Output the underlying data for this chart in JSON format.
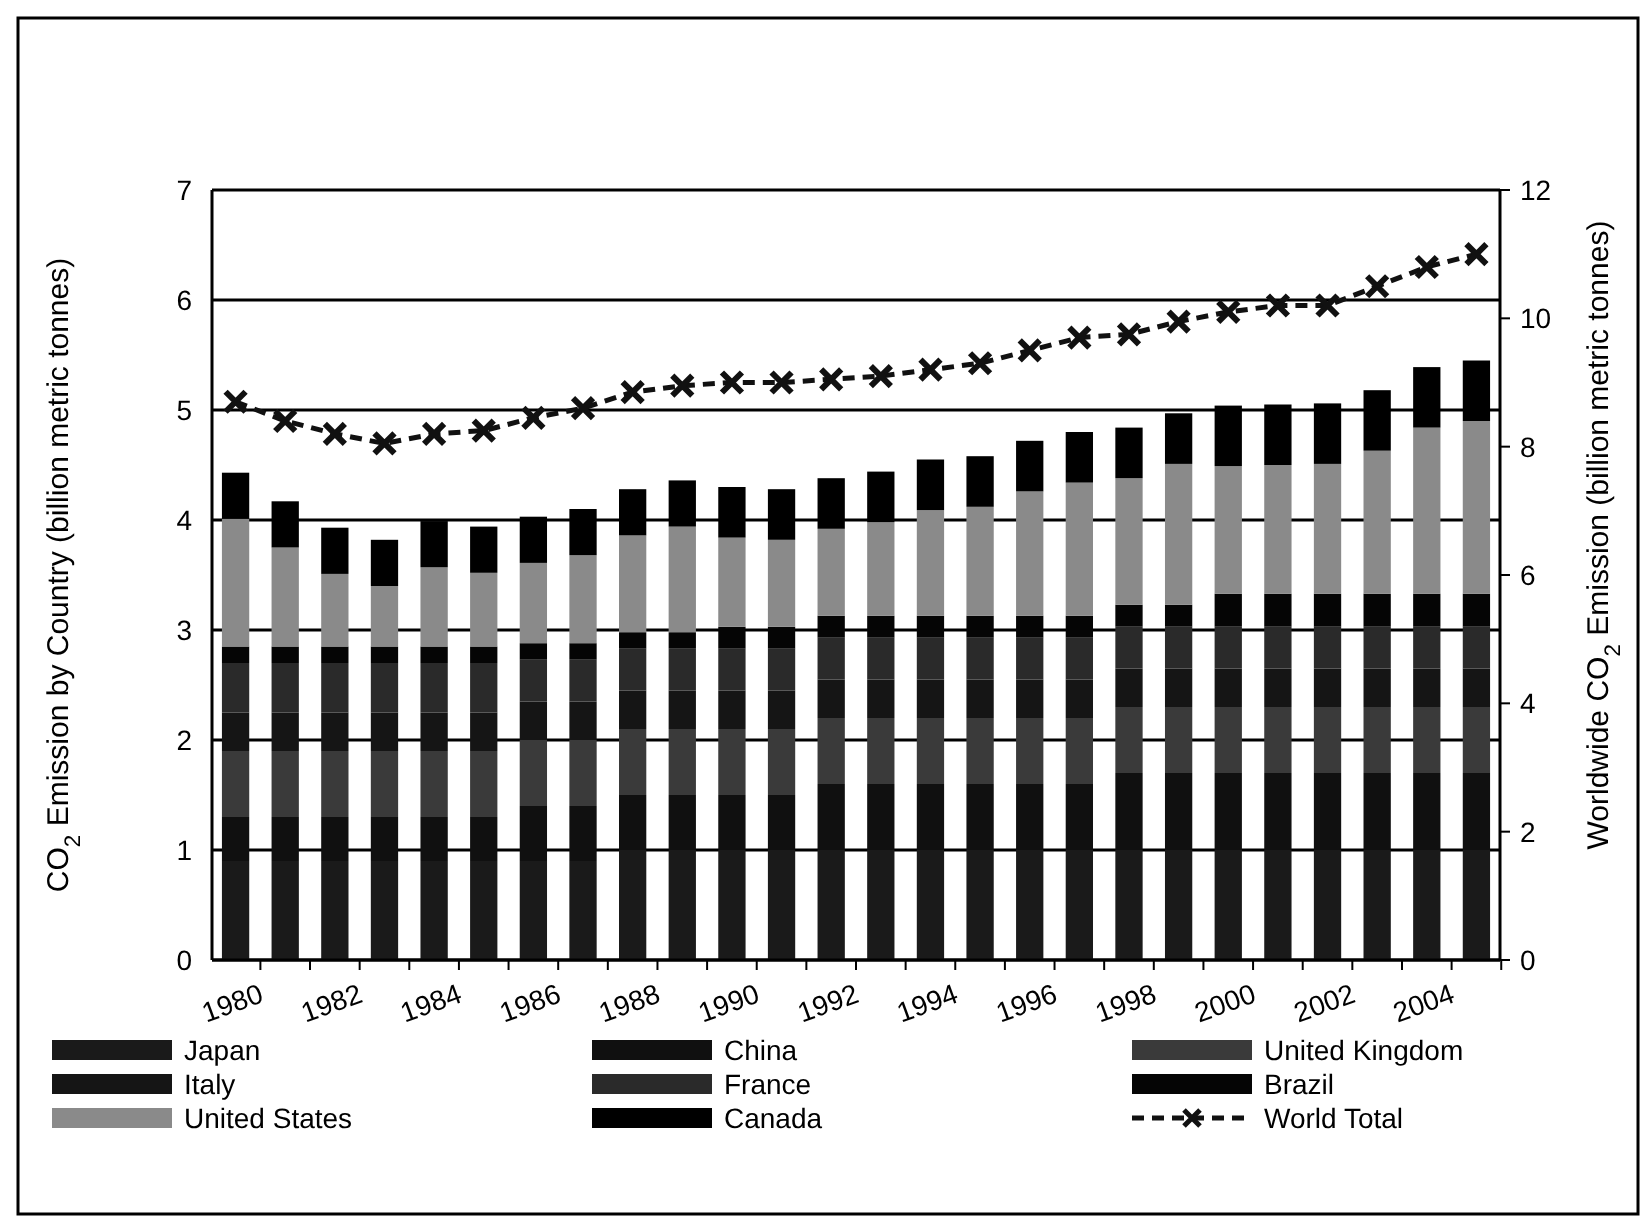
{
  "chart_data": {
    "type": "bar",
    "stacked": true,
    "categories": [
      "1980",
      null,
      "1982",
      null,
      "1984",
      null,
      "1986",
      null,
      "1988",
      null,
      "1990",
      null,
      "1992",
      null,
      "1994",
      null,
      "1996",
      null,
      "1998",
      null,
      "2000",
      null,
      "2002",
      null,
      "2004",
      null
    ],
    "ylabel": "CO$_{2}$ Emission by Country (billion metric tonnes)",
    "y2label": "Worldwide CO$_{2}$ Emission (billion metric tonnes)",
    "ylim": [
      0,
      7
    ],
    "yticks": [
      0,
      1,
      2,
      3,
      4,
      5,
      6,
      7
    ],
    "y2lim": [
      0,
      12
    ],
    "y2ticks": [
      0,
      2,
      4,
      6,
      8,
      10,
      12
    ],
    "grid": "y",
    "legend": "bottom",
    "series": [
      {
        "name": "Japan",
        "color": "#1a1a1a",
        "values": [
          0.9,
          0.9,
          0.9,
          0.9,
          0.9,
          0.9,
          0.9,
          0.9,
          1.0,
          1.0,
          1.0,
          1.0,
          1.0,
          1.0,
          1.0,
          1.0,
          1.0,
          1.0,
          1.0,
          1.0,
          1.0,
          1.0,
          1.0,
          1.0,
          1.0,
          1.0
        ]
      },
      {
        "name": "China",
        "color": "#101010",
        "values": [
          0.4,
          0.4,
          0.4,
          0.4,
          0.4,
          0.4,
          0.5,
          0.5,
          0.5,
          0.5,
          0.5,
          0.5,
          0.6,
          0.6,
          0.6,
          0.6,
          0.6,
          0.6,
          0.7,
          0.7,
          0.7,
          0.7,
          0.7,
          0.7,
          0.7,
          0.7
        ]
      },
      {
        "name": "United Kingdom",
        "color": "#3a3a3a",
        "values": [
          0.6,
          0.6,
          0.6,
          0.6,
          0.6,
          0.6,
          0.6,
          0.6,
          0.6,
          0.6,
          0.6,
          0.6,
          0.6,
          0.6,
          0.6,
          0.6,
          0.6,
          0.6,
          0.6,
          0.6,
          0.6,
          0.6,
          0.6,
          0.6,
          0.6,
          0.6
        ]
      },
      {
        "name": "Italy",
        "color": "#151515",
        "values": [
          0.35,
          0.35,
          0.35,
          0.35,
          0.35,
          0.35,
          0.35,
          0.35,
          0.35,
          0.35,
          0.35,
          0.35,
          0.35,
          0.35,
          0.35,
          0.35,
          0.35,
          0.35,
          0.35,
          0.35,
          0.35,
          0.35,
          0.35,
          0.35,
          0.35,
          0.35
        ]
      },
      {
        "name": "France",
        "color": "#2a2a2a",
        "values": [
          0.45,
          0.45,
          0.45,
          0.45,
          0.45,
          0.45,
          0.38,
          0.38,
          0.38,
          0.38,
          0.38,
          0.38,
          0.38,
          0.38,
          0.38,
          0.38,
          0.38,
          0.38,
          0.38,
          0.38,
          0.38,
          0.38,
          0.38,
          0.38,
          0.38,
          0.38
        ]
      },
      {
        "name": "Brazil",
        "color": "#050505",
        "values": [
          0.15,
          0.15,
          0.15,
          0.15,
          0.15,
          0.15,
          0.15,
          0.15,
          0.15,
          0.15,
          0.2,
          0.2,
          0.2,
          0.2,
          0.2,
          0.2,
          0.2,
          0.2,
          0.2,
          0.2,
          0.3,
          0.3,
          0.3,
          0.3,
          0.3,
          0.3
        ]
      },
      {
        "name": "United States",
        "color": "#8a8a8a",
        "values": [
          1.16,
          0.9,
          0.66,
          0.55,
          0.72,
          0.67,
          0.73,
          0.8,
          0.88,
          0.96,
          0.81,
          0.79,
          0.79,
          0.85,
          0.96,
          0.99,
          1.13,
          1.21,
          1.15,
          1.28,
          1.16,
          1.17,
          1.18,
          1.3,
          1.51,
          1.57
        ]
      },
      {
        "name": "Canada",
        "color": "#000000",
        "values": [
          0.42,
          0.42,
          0.42,
          0.42,
          0.42,
          0.42,
          0.42,
          0.42,
          0.42,
          0.42,
          0.46,
          0.46,
          0.46,
          0.46,
          0.46,
          0.46,
          0.46,
          0.46,
          0.46,
          0.46,
          0.55,
          0.55,
          0.55,
          0.55,
          0.55,
          0.55
        ]
      },
      {
        "name": "World Total",
        "type": "line",
        "axis": "y2",
        "color": "#111111",
        "marker": "cross",
        "line_style": "dashed",
        "values": [
          8.7,
          8.4,
          8.2,
          8.05,
          8.2,
          8.25,
          8.45,
          8.6,
          8.85,
          8.95,
          9.0,
          9.0,
          9.05,
          9.1,
          9.2,
          9.3,
          9.5,
          9.7,
          9.75,
          9.95,
          10.1,
          10.2,
          10.2,
          10.5,
          10.8,
          11.0
        ]
      }
    ]
  }
}
